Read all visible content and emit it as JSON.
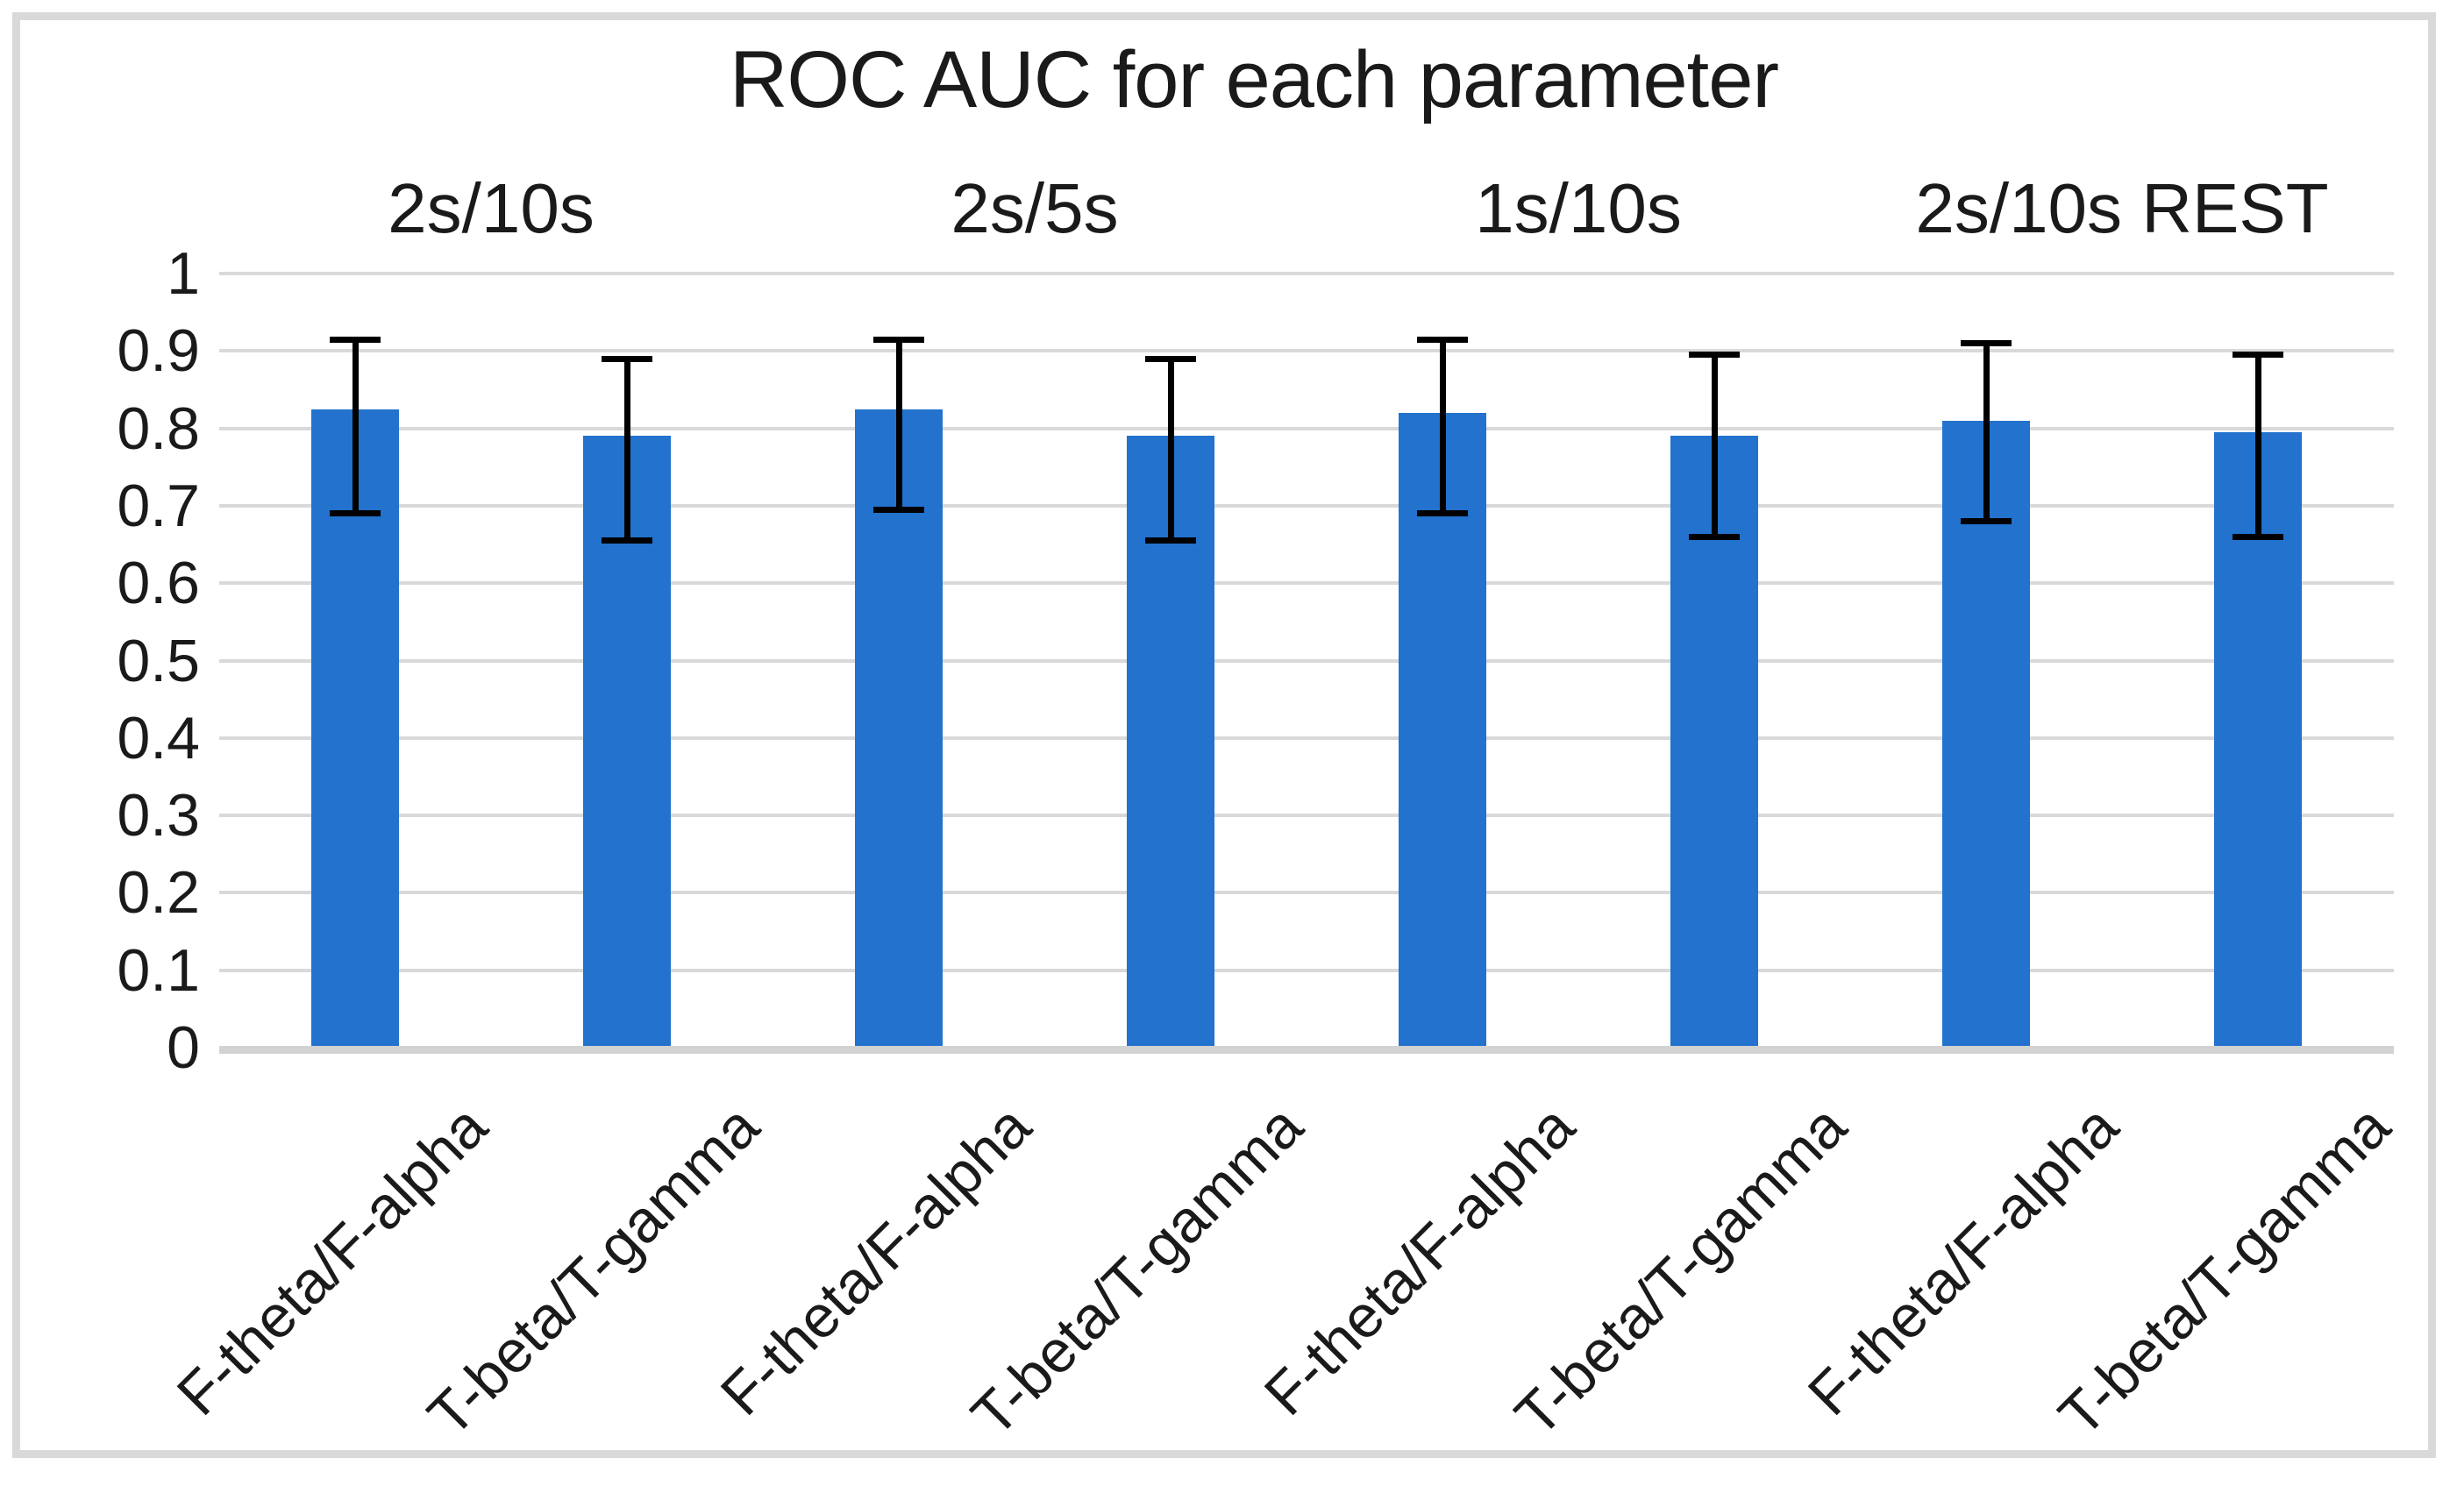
{
  "figure": {
    "background": "#ffffff",
    "frame_color": "#d9d9d9",
    "text_color": "#1a1a1a",
    "gridline_color": "#d9d9d9"
  },
  "chart_data": {
    "type": "bar",
    "title": "ROC AUC for each parameter",
    "group_labels": [
      "2s/10s",
      "2s/5s",
      "1s/10s",
      "2s/10s REST"
    ],
    "categories": [
      "F-theta/F-alpha",
      "T-beta/T-gamma",
      "F-theta/F-alpha",
      "T-beta/T-gamma",
      "F-theta/F-alpha",
      "T-beta/T-gamma",
      "F-theta/F-alpha",
      "T-beta/T-gamma"
    ],
    "values": [
      0.825,
      0.79,
      0.825,
      0.79,
      0.82,
      0.79,
      0.81,
      0.795
    ],
    "error_low": [
      0.69,
      0.655,
      0.695,
      0.655,
      0.69,
      0.66,
      0.68,
      0.66
    ],
    "error_high": [
      0.915,
      0.89,
      0.915,
      0.89,
      0.915,
      0.895,
      0.91,
      0.895
    ],
    "ylim": [
      0,
      1
    ],
    "ytick_step": 0.1,
    "ytick_labels": [
      "1",
      "0.9",
      "0.8",
      "0.7",
      "0.6",
      "0.5",
      "0.4",
      "0.3",
      "0.2",
      "0.1",
      "0"
    ],
    "grid": true,
    "legend": "none",
    "xlabel": "",
    "ylabel": "",
    "bar_color": "#2272ce",
    "error_bar_color": "#000000"
  }
}
